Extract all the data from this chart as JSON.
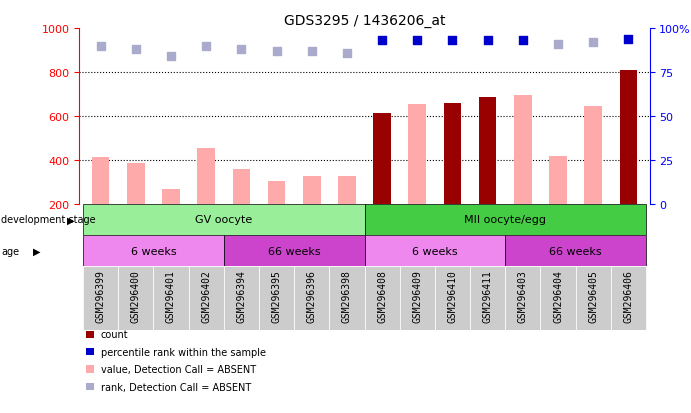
{
  "title": "GDS3295 / 1436206_at",
  "samples": [
    "GSM296399",
    "GSM296400",
    "GSM296401",
    "GSM296402",
    "GSM296394",
    "GSM296395",
    "GSM296396",
    "GSM296398",
    "GSM296408",
    "GSM296409",
    "GSM296410",
    "GSM296411",
    "GSM296403",
    "GSM296404",
    "GSM296405",
    "GSM296406"
  ],
  "count_values": [
    415,
    385,
    270,
    455,
    360,
    305,
    325,
    325,
    615,
    655,
    660,
    685,
    695,
    420,
    645,
    810
  ],
  "count_absent": [
    true,
    true,
    true,
    true,
    true,
    true,
    true,
    true,
    false,
    true,
    false,
    false,
    true,
    true,
    true,
    false
  ],
  "rank_values": [
    90,
    88,
    84,
    90,
    88,
    87,
    87,
    86,
    93,
    93,
    93,
    93,
    93,
    91,
    92,
    94
  ],
  "rank_absent": [
    true,
    true,
    true,
    true,
    true,
    true,
    true,
    true,
    false,
    false,
    false,
    false,
    false,
    true,
    true,
    false
  ],
  "ylim_left": [
    200,
    1000
  ],
  "ylim_right": [
    0,
    100
  ],
  "yticks_left": [
    200,
    400,
    600,
    800,
    1000
  ],
  "yticks_right": [
    0,
    25,
    50,
    75,
    100
  ],
  "ytick_labels_right": [
    "0",
    "25",
    "50",
    "75",
    "100%"
  ],
  "color_count_present": "#990000",
  "color_count_absent": "#ffaaaa",
  "color_rank_present": "#0000cc",
  "color_rank_absent": "#aaaacc",
  "bar_width": 0.5,
  "dot_size": 40,
  "color_gv": "#99ee99",
  "color_mii": "#44cc44",
  "color_6weeks": "#ee88ee",
  "color_66weeks": "#cc44cc",
  "color_xlabels_bg": "#cccccc",
  "legend_items": [
    {
      "label": "count",
      "color": "#990000"
    },
    {
      "label": "percentile rank within the sample",
      "color": "#0000cc"
    },
    {
      "label": "value, Detection Call = ABSENT",
      "color": "#ffaaaa"
    },
    {
      "label": "rank, Detection Call = ABSENT",
      "color": "#aaaacc"
    }
  ],
  "background_color": "#ffffff"
}
